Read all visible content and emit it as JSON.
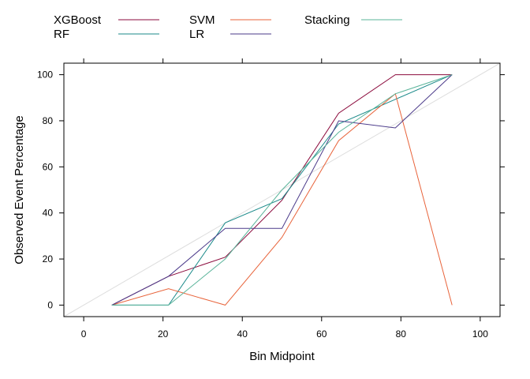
{
  "chart_data": {
    "type": "line",
    "title": "",
    "xlabel": "Bin Midpoint",
    "ylabel": "Observed Event Percentage",
    "xlim": [
      -5,
      105
    ],
    "ylim": [
      -5,
      105
    ],
    "x_ticks": [
      0,
      20,
      40,
      60,
      80,
      100
    ],
    "y_ticks": [
      0,
      20,
      40,
      60,
      80,
      100
    ],
    "x_tick_labels": [
      "0",
      "20",
      "40",
      "60",
      "80",
      "100"
    ],
    "y_tick_labels": [
      "0",
      "20",
      "40",
      "60",
      "80",
      "100"
    ],
    "grid": false,
    "legend_position": "top",
    "reference_line": {
      "from": [
        -5,
        -5
      ],
      "to": [
        105,
        105
      ],
      "color": "#dddddd"
    },
    "series": [
      {
        "name": "XGBoost",
        "color": "#8b0a3c",
        "x": [
          7.1,
          21.4,
          35.7,
          50,
          64.3,
          78.6,
          92.9
        ],
        "y": [
          0,
          12.5,
          20.8,
          45.5,
          83.3,
          100,
          100
        ]
      },
      {
        "name": "RF",
        "color": "#1b8a8a",
        "x": [
          7.1,
          21.4,
          35.7,
          50,
          64.3,
          78.6,
          92.9
        ],
        "y": [
          0,
          0,
          35.7,
          46.2,
          78.6,
          89.3,
          100
        ]
      },
      {
        "name": "SVM",
        "color": "#e8633a",
        "x": [
          7.1,
          21.4,
          35.7,
          50,
          64.3,
          78.6,
          92.9
        ],
        "y": [
          0,
          7.1,
          0,
          29.4,
          71.4,
          91.7,
          0
        ]
      },
      {
        "name": "LR",
        "color": "#4b3a8a",
        "x": [
          7.1,
          21.4,
          35.7,
          50,
          64.3,
          78.6,
          92.9
        ],
        "y": [
          0,
          12.5,
          33.3,
          33.3,
          80,
          76.9,
          100
        ]
      },
      {
        "name": "Stacking",
        "color": "#5ab49a",
        "x": [
          7.1,
          21.4,
          35.7,
          50,
          64.3,
          78.6,
          92.9
        ],
        "y": [
          0,
          0,
          20,
          50,
          75,
          91.7,
          100
        ]
      }
    ]
  }
}
